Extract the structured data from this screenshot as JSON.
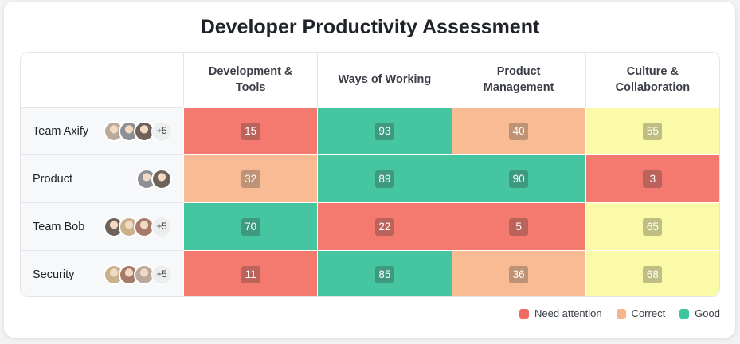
{
  "chart_data": {
    "type": "heatmap",
    "title": "Developer Productivity Assessment",
    "columns": [
      "Development & Tools",
      "Ways of Working",
      "Product Management",
      "Culture & Collaboration"
    ],
    "rows": [
      {
        "name": "Team Axify",
        "avatars": 3,
        "more": "+5"
      },
      {
        "name": "Product",
        "avatars": 2,
        "more": null
      },
      {
        "name": "Team Bob",
        "avatars": 3,
        "more": "+5"
      },
      {
        "name": "Security",
        "avatars": 3,
        "more": "+5"
      }
    ],
    "values": [
      [
        15,
        93,
        40,
        55
      ],
      [
        32,
        89,
        90,
        3
      ],
      [
        70,
        22,
        5,
        65
      ],
      [
        11,
        85,
        36,
        68
      ]
    ],
    "colors": [
      [
        "#f47a6f",
        "#46c6a0",
        "#f8bb93",
        "#fafaa8"
      ],
      [
        "#f8bb93",
        "#46c6a0",
        "#46c6a0",
        "#f47a6f"
      ],
      [
        "#46c6a0",
        "#f47a6f",
        "#f47a6f",
        "#fafaa8"
      ],
      [
        "#f47a6f",
        "#46c6a0",
        "#f8bb93",
        "#fafaa8"
      ]
    ],
    "legend": [
      {
        "name": "Need attention",
        "color": "#f06a62"
      },
      {
        "name": "Correct",
        "color": "#f8b58d"
      },
      {
        "name": "Good",
        "color": "#3cc59f"
      }
    ]
  }
}
